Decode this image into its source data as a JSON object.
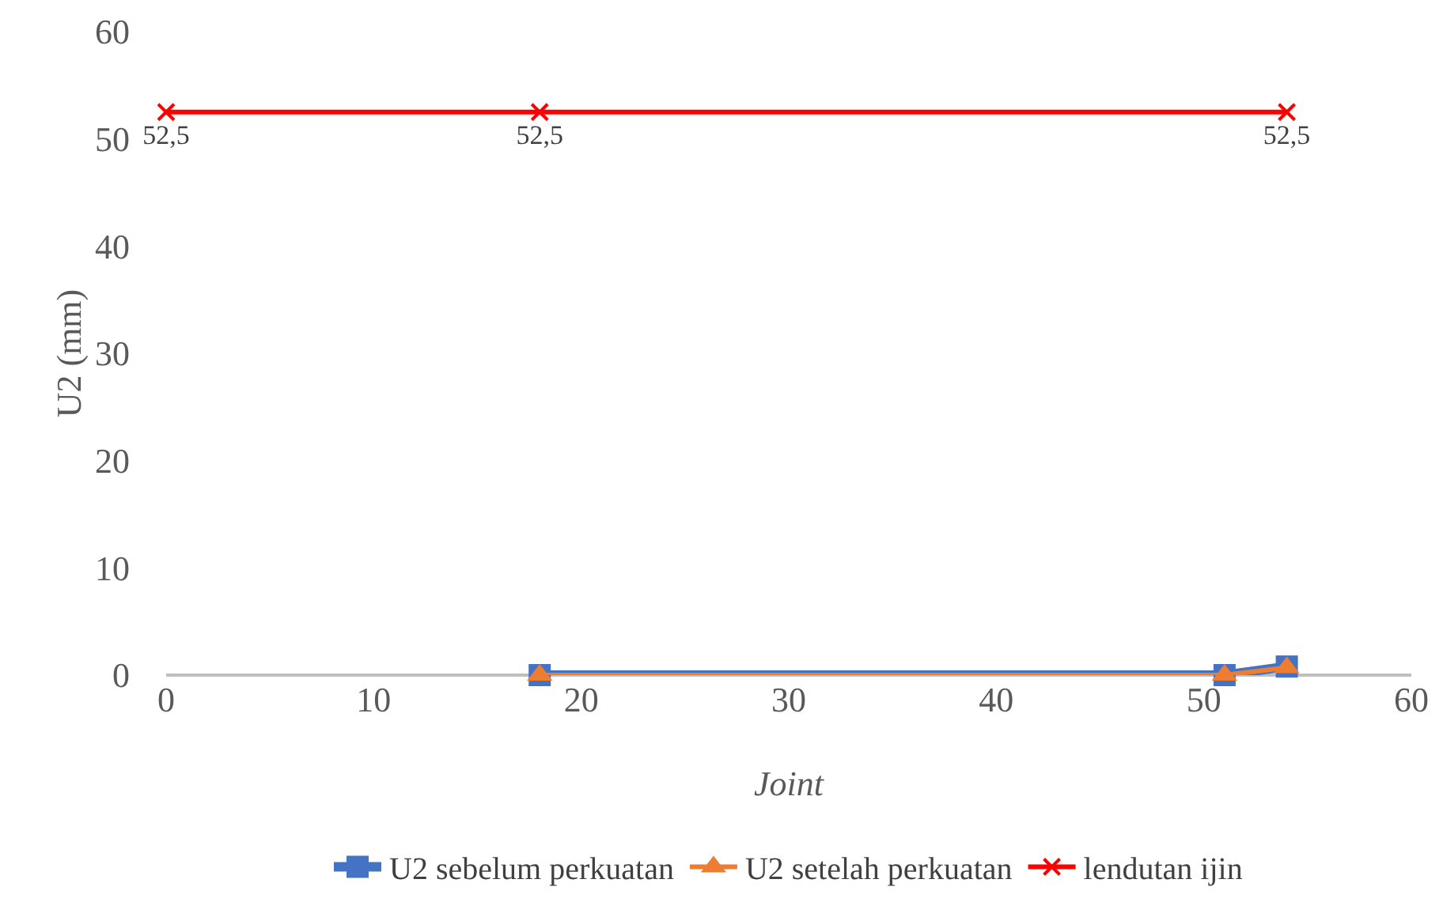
{
  "chart_data": {
    "type": "line",
    "xlabel": "Joint",
    "ylabel": "U2 (mm)",
    "xlim": [
      0,
      60
    ],
    "xticks": [
      0,
      10,
      20,
      30,
      40,
      50,
      60
    ],
    "ylim": [
      0,
      60
    ],
    "yticks": [
      0,
      10,
      20,
      30,
      40,
      50,
      60
    ],
    "grid": false,
    "legend": "bottom",
    "series": [
      {
        "name": "U2 sebelum perkuatan",
        "color": "#4472c4",
        "marker": "square",
        "x": [
          18,
          51,
          54
        ],
        "values": [
          0,
          0,
          0.8
        ]
      },
      {
        "name": "U2 setelah perkuatan",
        "color": "#ed7d31",
        "marker": "triangle",
        "x": [
          18,
          51,
          54
        ],
        "values": [
          0,
          0,
          0.7
        ]
      },
      {
        "name": "lendutan ijin",
        "color": "#ff0000",
        "marker": "cross",
        "x": [
          0,
          18,
          54
        ],
        "values": [
          52.5,
          52.5,
          52.5
        ],
        "value_labels": [
          "52,5",
          "52,5",
          "52,5"
        ]
      }
    ]
  }
}
